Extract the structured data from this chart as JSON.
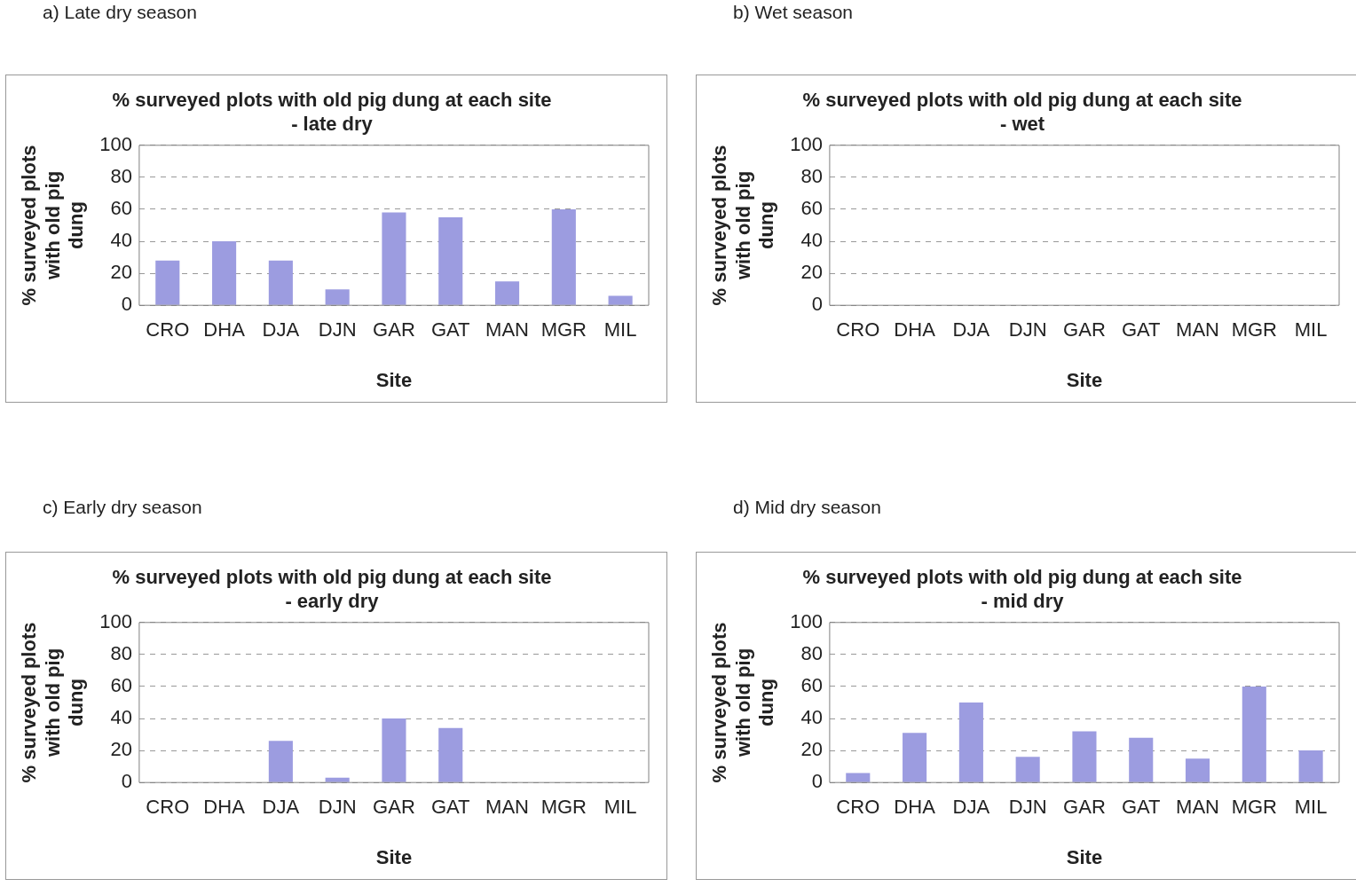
{
  "chart_data": [
    {
      "type": "bar",
      "annotations": [
        "a) Late dry season"
      ],
      "title": "% surveyed plots with old pig dung at each site - late dry",
      "xlabel": "Site",
      "ylabel": "% surveyed plots with old pig dung",
      "categories": [
        "CRO",
        "DHA",
        "DJA",
        "DJN",
        "GAR",
        "GAT",
        "MAN",
        "MGR",
        "MIL"
      ],
      "values": [
        28,
        40,
        28,
        10,
        58,
        55,
        15,
        60,
        6
      ],
      "color": "#9c9ce0",
      "ylim": [
        0,
        100
      ],
      "yticks": [
        0,
        20,
        40,
        60,
        80,
        100
      ],
      "grid": "y",
      "legend": false
    },
    {
      "type": "bar",
      "annotations": [
        "b) Wet season"
      ],
      "title": "% surveyed plots with old pig dung at each site - wet",
      "xlabel": "Site",
      "ylabel": "% surveyed plots with old pig dung",
      "categories": [
        "CRO",
        "DHA",
        "DJA",
        "DJN",
        "GAR",
        "GAT",
        "MAN",
        "MGR",
        "MIL"
      ],
      "values": [
        0,
        0,
        0,
        0,
        0,
        0,
        0,
        0,
        0
      ],
      "color": "#9c9ce0",
      "ylim": [
        0,
        100
      ],
      "yticks": [
        0,
        20,
        40,
        60,
        80,
        100
      ],
      "grid": "y",
      "legend": false
    },
    {
      "type": "bar",
      "annotations": [
        "c) Early dry season"
      ],
      "title": "% surveyed plots with old pig dung at each site - early dry",
      "xlabel": "Site",
      "ylabel": "% surveyed plots with old pig dung",
      "categories": [
        "CRO",
        "DHA",
        "DJA",
        "DJN",
        "GAR",
        "GAT",
        "MAN",
        "MGR",
        "MIL"
      ],
      "values": [
        0,
        0,
        26,
        3,
        40,
        34,
        0,
        0,
        0
      ],
      "color": "#9c9ce0",
      "ylim": [
        0,
        100
      ],
      "yticks": [
        0,
        20,
        40,
        60,
        80,
        100
      ],
      "grid": "y",
      "legend": false
    },
    {
      "type": "bar",
      "annotations": [
        "d) Mid dry season"
      ],
      "title": "% surveyed plots with old pig dung at each site - mid dry",
      "xlabel": "Site",
      "ylabel": "% surveyed plots with old pig dung",
      "categories": [
        "CRO",
        "DHA",
        "DJA",
        "DJN",
        "GAR",
        "GAT",
        "MAN",
        "MGR",
        "MIL"
      ],
      "values": [
        6,
        31,
        50,
        16,
        32,
        28,
        15,
        60,
        20
      ],
      "color": "#9c9ce0",
      "ylim": [
        0,
        100
      ],
      "yticks": [
        0,
        20,
        40,
        60,
        80,
        100
      ],
      "grid": "y",
      "legend": false
    }
  ]
}
